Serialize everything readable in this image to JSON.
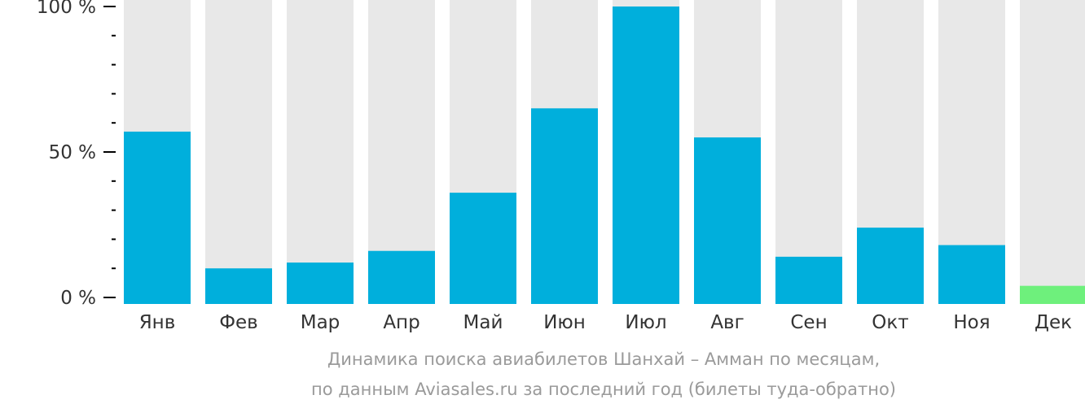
{
  "chart_data": {
    "type": "bar",
    "categories": [
      "Янв",
      "Фев",
      "Мар",
      "Апр",
      "Май",
      "Июн",
      "Июл",
      "Авг",
      "Сен",
      "Окт",
      "Ноя",
      "Дек"
    ],
    "values": [
      57,
      10,
      12,
      16,
      36,
      65,
      100,
      55,
      14,
      24,
      18,
      4
    ],
    "highlight_index": 11,
    "ylim": [
      0,
      100
    ],
    "yticks": [
      {
        "value": 0,
        "label": "0 %"
      },
      {
        "value": 50,
        "label": "50 %"
      },
      {
        "value": 100,
        "label": "100 %"
      }
    ],
    "minor_tick_step": 10,
    "colors": {
      "bar": "#00afdc",
      "highlight": "#6ef07c",
      "track": "#e8e8e8",
      "axis": "#000000",
      "label": "#333333"
    }
  },
  "caption": {
    "line1": "Динамика поиска авиабилетов Шанхай – Амман по месяцам,",
    "line2": "по данным Aviasales.ru за последний год (билеты туда-обратно)"
  }
}
